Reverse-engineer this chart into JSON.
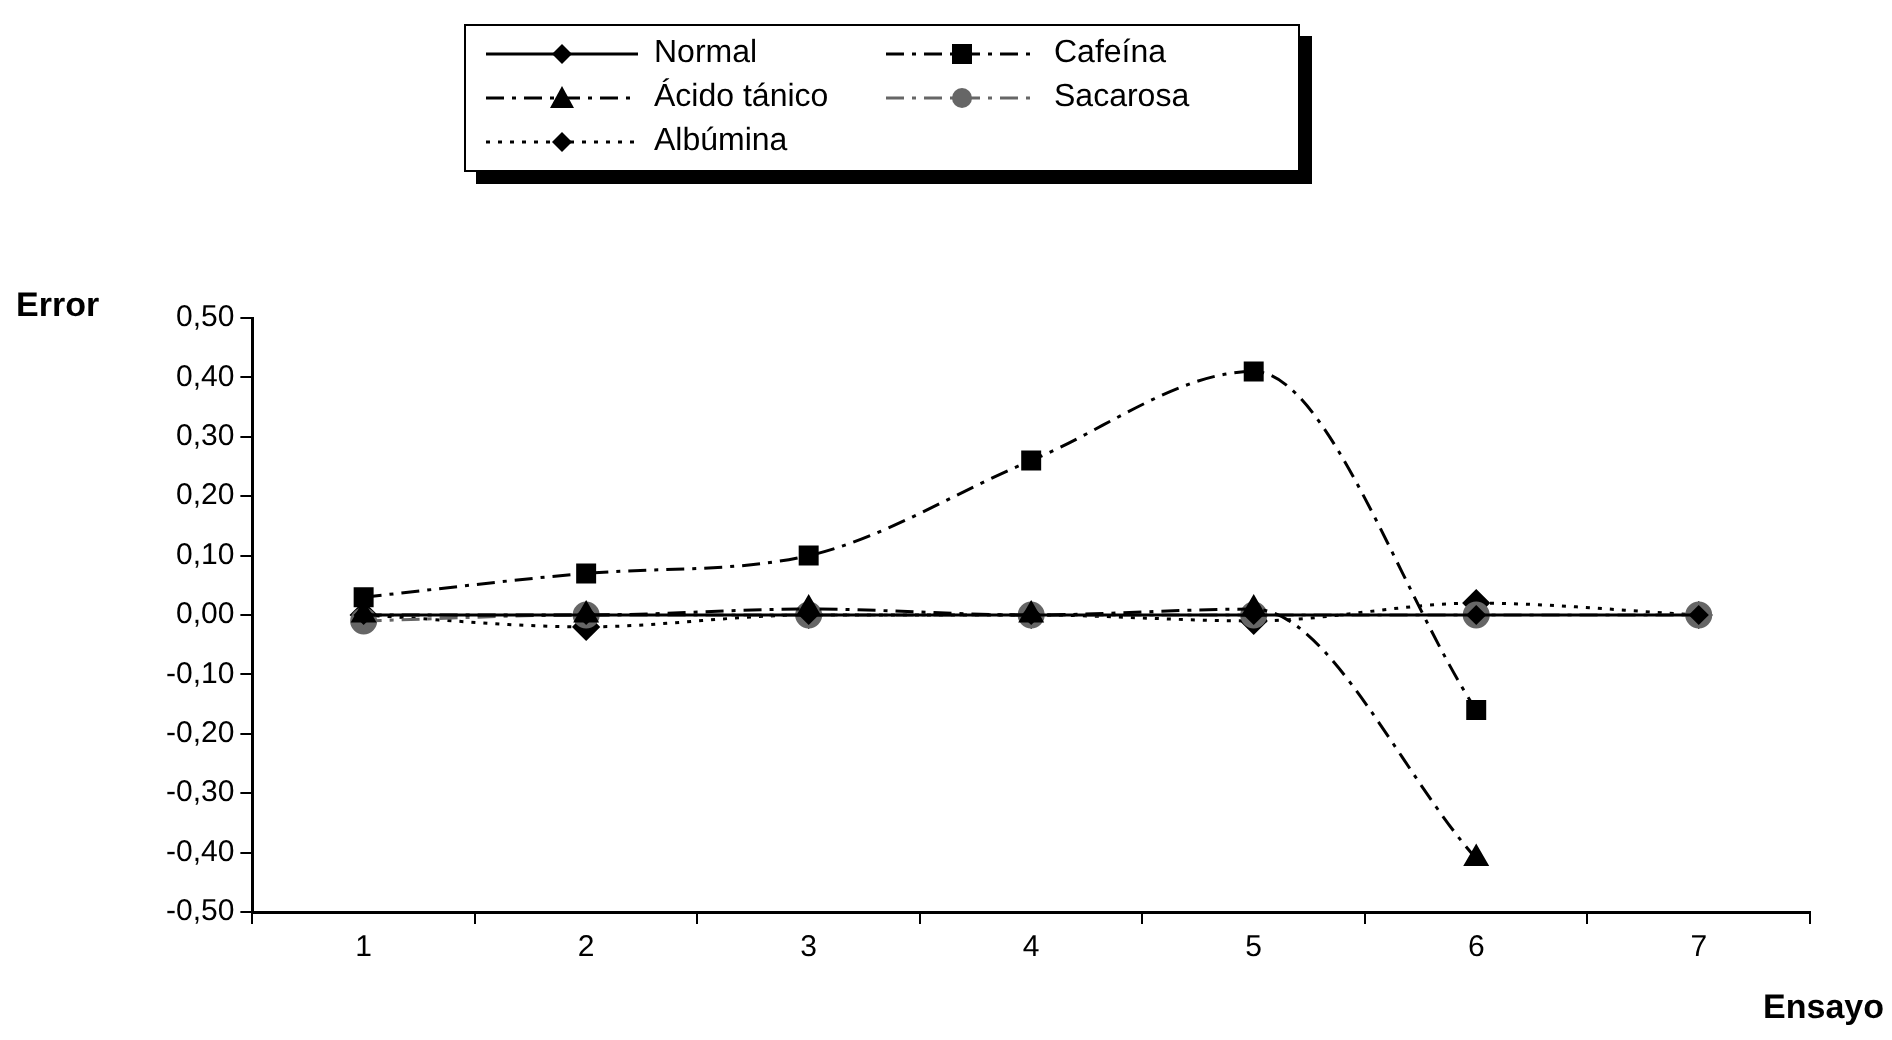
{
  "chart_data": {
    "type": "line",
    "xlabel": "Ensayo",
    "ylabel": "Error",
    "categories": [
      "1",
      "2",
      "3",
      "4",
      "5",
      "6",
      "7"
    ],
    "ylim": [
      -0.5,
      0.5
    ],
    "yticks": [
      {
        "value": -0.5,
        "label": "-0,50"
      },
      {
        "value": -0.4,
        "label": "-0,40"
      },
      {
        "value": -0.3,
        "label": "-0,30"
      },
      {
        "value": -0.2,
        "label": "-0,20"
      },
      {
        "value": -0.1,
        "label": "-0,10"
      },
      {
        "value": 0,
        "label": "0,00"
      },
      {
        "value": 0.1,
        "label": "0,10"
      },
      {
        "value": 0.2,
        "label": "0,20"
      },
      {
        "value": 0.3,
        "label": "0,30"
      },
      {
        "value": 0.4,
        "label": "0,40"
      },
      {
        "value": 0.5,
        "label": "0,50"
      }
    ],
    "grid": false,
    "legend": "top",
    "series": [
      {
        "name": "Normal",
        "color": "#000000",
        "marker": "diamond",
        "line_style": "solid",
        "values": [
          0,
          0,
          0,
          0,
          0,
          0,
          0
        ]
      },
      {
        "name": "Cafeína",
        "color": "#000000",
        "marker": "square",
        "line_style": "dashed",
        "values": [
          0.03,
          0.07,
          0.1,
          0.26,
          0.41,
          -0.16,
          null
        ]
      },
      {
        "name": "Ácido tánico",
        "color": "#000000",
        "marker": "triangle",
        "line_style": "dashed",
        "values": [
          0,
          0,
          0.01,
          0,
          0.01,
          -0.41,
          null
        ]
      },
      {
        "name": "Sacarosa",
        "color": "#666666",
        "marker": "circle",
        "line_style": "dashed",
        "values": [
          -0.01,
          0,
          0,
          0,
          0,
          0,
          0
        ]
      },
      {
        "name": "Albúmina",
        "color": "#000000",
        "marker": "diamond",
        "line_style": "dotted",
        "values": [
          0,
          -0.02,
          0,
          0,
          -0.01,
          0.02,
          0
        ]
      }
    ]
  }
}
